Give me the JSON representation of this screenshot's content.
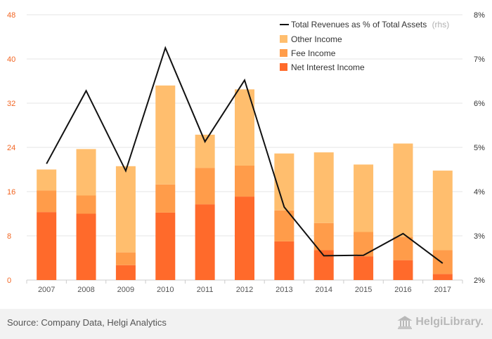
{
  "colors": {
    "net_interest": "#ff6a2b",
    "fee": "#ff9c4a",
    "other": "#ffbe6e",
    "line": "#111111",
    "grid": "#e6e6e6",
    "left_axis": "#f26522"
  },
  "chart_data": {
    "type": "bar",
    "stacked": true,
    "categories": [
      "2007",
      "2008",
      "2009",
      "2010",
      "2011",
      "2012",
      "2013",
      "2014",
      "2015",
      "2016",
      "2017"
    ],
    "series": [
      {
        "name": "Net Interest Income",
        "values": [
          12.3,
          12.0,
          2.7,
          12.2,
          13.7,
          15.1,
          7.0,
          5.4,
          4.3,
          3.6,
          1.1
        ]
      },
      {
        "name": "Fee Income",
        "values": [
          3.9,
          3.3,
          2.3,
          5.1,
          6.6,
          5.6,
          5.6,
          4.9,
          4.4,
          4.2,
          4.3
        ]
      },
      {
        "name": "Other Income",
        "values": [
          3.8,
          8.4,
          15.6,
          17.9,
          6.0,
          13.8,
          10.3,
          12.8,
          12.2,
          16.9,
          14.4
        ]
      }
    ],
    "line_series": {
      "name": "Total Revenues as % of Total Assets",
      "suffix": "(rhs)",
      "values": [
        4.63,
        6.28,
        4.47,
        7.25,
        5.13,
        6.52,
        3.65,
        2.55,
        2.56,
        3.05,
        2.38
      ]
    },
    "y_left": {
      "min": 0,
      "max": 48,
      "ticks": [
        "0",
        "8",
        "16",
        "24",
        "32",
        "40",
        "48"
      ]
    },
    "y_right": {
      "min": 2,
      "max": 8,
      "ticks": [
        "2%",
        "3%",
        "4%",
        "5%",
        "6%",
        "7%",
        "8%"
      ]
    },
    "grid": true,
    "legend_position": "top-right"
  },
  "footer": {
    "source": "Source: Company Data, Helgi Analytics",
    "logo_text": "HelgiLibrary."
  },
  "icons": {
    "logo": "library-building-icon"
  }
}
